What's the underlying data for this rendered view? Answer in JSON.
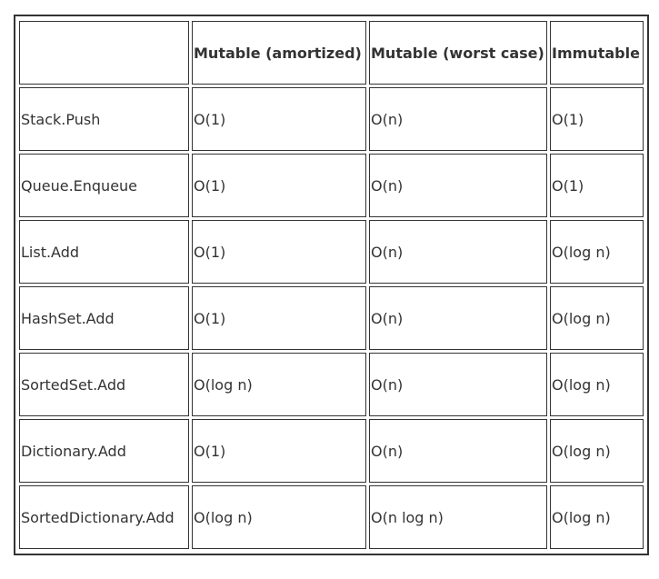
{
  "headers": [
    "",
    "Mutable (amortized)",
    "Mutable (worst case)",
    "Immutable"
  ],
  "rows": [
    [
      "Stack.Push",
      "O(1)",
      "O(n)",
      "O(1)"
    ],
    [
      "Queue.Enqueue",
      "O(1)",
      "O(n)",
      "O(1)"
    ],
    [
      "List.Add",
      "O(1)",
      "O(n)",
      "O(log n)"
    ],
    [
      "HashSet.Add",
      "O(1)",
      "O(n)",
      "O(log n)"
    ],
    [
      "SortedSet.Add",
      "O(log n)",
      "O(n)",
      "O(log n)"
    ],
    [
      "Dictionary.Add",
      "O(1)",
      "O(n)",
      "O(log n)"
    ],
    [
      "SortedDictionary.Add",
      "O(log n)",
      "O(n log n)",
      "O(log n)"
    ]
  ]
}
